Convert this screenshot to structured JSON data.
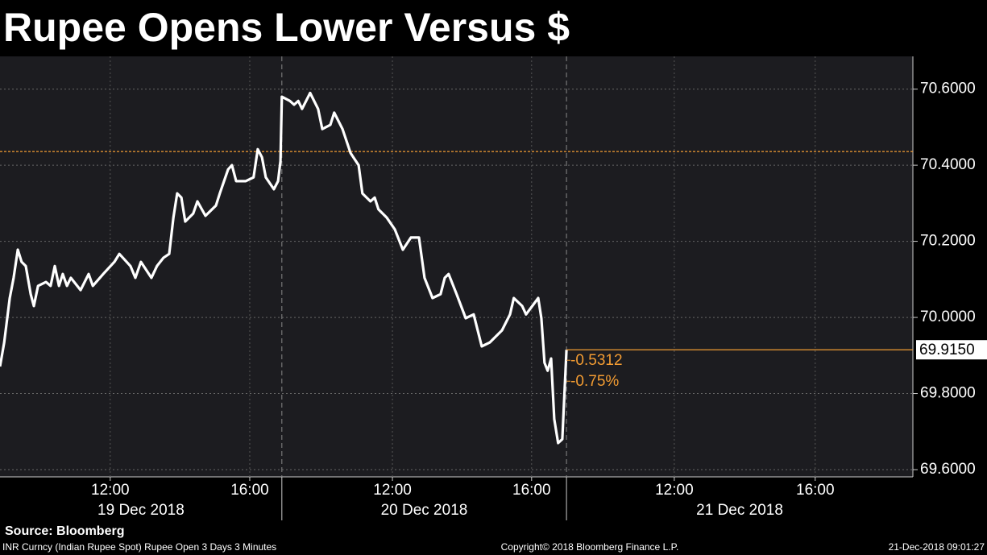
{
  "chart_data": {
    "type": "line",
    "title": "Rupee Opens Lower Versus $",
    "source": "Source: Bloomberg",
    "footer_left": "INR Curncy (Indian Rupee Spot) Rupee Open 3 Days 3 Minutes",
    "footer_center": "Copyright© 2018 Bloomberg Finance L.P.",
    "footer_right": "21-Dec-2018 09:01:27",
    "xlim": [
      0,
      26.17
    ],
    "xticks": [
      {
        "value": 3.16,
        "label": "12:00"
      },
      {
        "value": 7.16,
        "label": "16:00"
      },
      {
        "value": 11.25,
        "label": "12:00"
      },
      {
        "value": 15.24,
        "label": "16:00"
      },
      {
        "value": 19.33,
        "label": "12:00"
      },
      {
        "value": 23.37,
        "label": "16:00"
      }
    ],
    "day_separators": [
      8.08,
      16.24
    ],
    "days": [
      "19 Dec 2018",
      "20 Dec 2018",
      "21 Dec 2018"
    ],
    "ylim": [
      69.581,
      70.686
    ],
    "yticks": [
      {
        "value": 69.6,
        "label": "69.6000"
      },
      {
        "value": 69.8,
        "label": "69.8000"
      },
      {
        "value": 70.0,
        "label": "70.0000"
      },
      {
        "value": 70.2,
        "label": "70.2000"
      },
      {
        "value": 70.4,
        "label": "70.4000"
      },
      {
        "value": 70.6,
        "label": "70.6000"
      }
    ],
    "grid": true,
    "reference_line": {
      "value": 70.436,
      "color": "#f39c32"
    },
    "last_price": {
      "value": 69.915,
      "label": "69.9150",
      "color": "#f39c32"
    },
    "annotations": [
      "-0.5312",
      "-0.75%"
    ],
    "series": [
      {
        "name": "INR Curncy",
        "color": "#ffffff",
        "x": [
          0.0,
          0.12,
          0.28,
          0.39,
          0.51,
          0.62,
          0.74,
          0.88,
          0.97,
          1.09,
          1.32,
          1.45,
          1.57,
          1.69,
          1.8,
          1.92,
          2.03,
          2.31,
          2.54,
          2.66,
          2.96,
          3.28,
          3.42,
          3.74,
          3.88,
          4.04,
          4.34,
          4.5,
          4.69,
          4.85,
          4.97,
          5.08,
          5.2,
          5.31,
          5.54,
          5.66,
          5.89,
          6.19,
          6.3,
          6.54,
          6.65,
          6.77,
          7.04,
          7.27,
          7.39,
          7.51,
          7.62,
          7.85,
          7.97,
          8.04,
          8.08,
          8.31,
          8.43,
          8.55,
          8.66,
          8.89,
          9.12,
          9.24,
          9.47,
          9.58,
          9.82,
          10.05,
          10.28,
          10.39,
          10.62,
          10.74,
          10.85,
          11.09,
          11.32,
          11.55,
          11.78,
          12.01,
          12.17,
          12.4,
          12.63,
          12.75,
          12.86,
          13.09,
          13.35,
          13.58,
          13.81,
          14.04,
          14.39,
          14.62,
          14.73,
          14.97,
          15.08,
          15.43,
          15.52,
          15.61,
          15.7,
          15.8,
          15.89,
          16.0,
          16.12,
          16.24
        ],
        "values": [
          69.871,
          69.934,
          70.051,
          70.104,
          70.178,
          70.146,
          70.135,
          70.061,
          70.03,
          70.083,
          70.093,
          70.083,
          70.135,
          70.083,
          70.114,
          70.083,
          70.104,
          70.072,
          70.114,
          70.083,
          70.114,
          70.146,
          70.167,
          70.135,
          70.104,
          70.146,
          70.104,
          70.135,
          70.157,
          70.167,
          70.262,
          70.326,
          70.315,
          70.252,
          70.273,
          70.305,
          70.267,
          70.294,
          70.326,
          70.389,
          70.4,
          70.358,
          70.358,
          70.368,
          70.442,
          70.421,
          70.368,
          70.337,
          70.358,
          70.411,
          70.58,
          70.569,
          70.559,
          70.569,
          70.548,
          70.59,
          70.548,
          70.495,
          70.506,
          70.538,
          70.495,
          70.432,
          70.4,
          70.326,
          70.305,
          70.315,
          70.284,
          70.262,
          70.231,
          70.178,
          70.21,
          70.21,
          70.104,
          70.051,
          70.061,
          70.104,
          70.114,
          70.061,
          69.998,
          70.008,
          69.924,
          69.934,
          69.966,
          70.008,
          70.051,
          70.03,
          70.008,
          70.051,
          69.998,
          69.881,
          69.86,
          69.892,
          69.733,
          69.67,
          69.68,
          69.915
        ]
      }
    ]
  }
}
